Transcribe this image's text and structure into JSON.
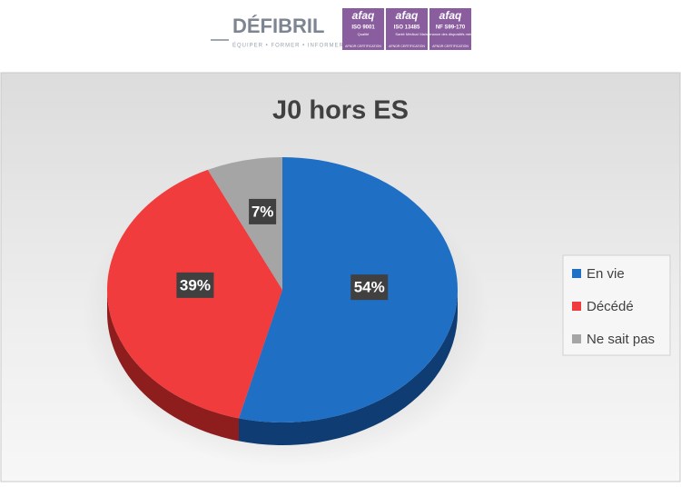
{
  "header": {
    "brand": "DÉFIBRIL",
    "tagline": "ÉQUIPER • FORMER • INFORMER",
    "badges": [
      {
        "brand": "afaq",
        "standard": "ISO 9001",
        "label": "Qualité",
        "footer": "AFNOR CERTIFICATION"
      },
      {
        "brand": "afaq",
        "standard": "ISO 13485",
        "label": "Santé Médical",
        "footer": "AFNOR CERTIFICATION"
      },
      {
        "brand": "afaq",
        "standard": "NF S99-170",
        "label": "Maintenance des dispositifs médicaux",
        "footer": "AFNOR CERTIFICATION"
      }
    ]
  },
  "chart_data": {
    "type": "pie",
    "title": "J0 hors ES",
    "categories": [
      "En vie",
      "Décédé",
      "Ne sait pas"
    ],
    "values": [
      54,
      39,
      7
    ],
    "value_labels": [
      "54%",
      "39%",
      "7%"
    ],
    "colors": [
      "#1f6fc5",
      "#f03c3c",
      "#a5a5a5"
    ],
    "side_colors": [
      "#0f3d73",
      "#8e1d1d",
      "#606060"
    ],
    "legend": "right"
  }
}
